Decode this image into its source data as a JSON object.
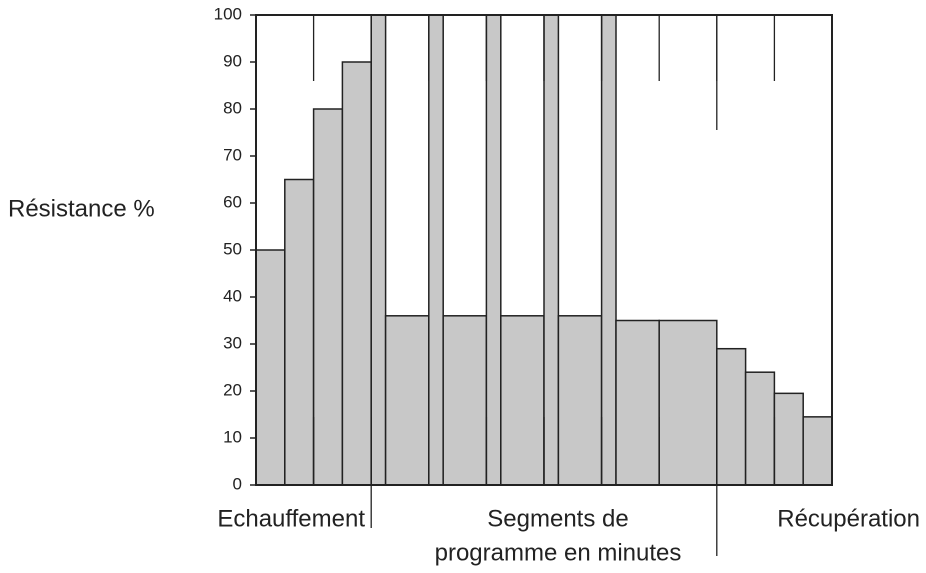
{
  "chart_data": {
    "type": "step",
    "y_label": "Résistance %",
    "annotations": [
      "Echauffement",
      "Segments de",
      "programme en minutes",
      "Récupération"
    ],
    "x": [
      0,
      0.5,
      1,
      1.5,
      2,
      2.25,
      3,
      3.25,
      4,
      4.25,
      5,
      5.25,
      6,
      6.25,
      7,
      8,
      8.5,
      9,
      9.5
    ],
    "values": [
      50,
      65,
      80,
      90,
      100,
      36,
      100,
      36,
      100,
      36,
      100,
      36,
      100,
      35,
      35,
      29,
      24,
      19.5,
      14.5
    ],
    "color": "#c8c8c8",
    "xlim": [
      0,
      10
    ],
    "xticks": [
      1,
      2,
      3,
      4,
      5,
      6,
      7,
      8,
      9
    ],
    "ylim": [
      0,
      100
    ],
    "yticks": [
      0,
      10,
      20,
      30,
      40,
      50,
      60,
      70,
      80,
      90,
      100
    ]
  }
}
